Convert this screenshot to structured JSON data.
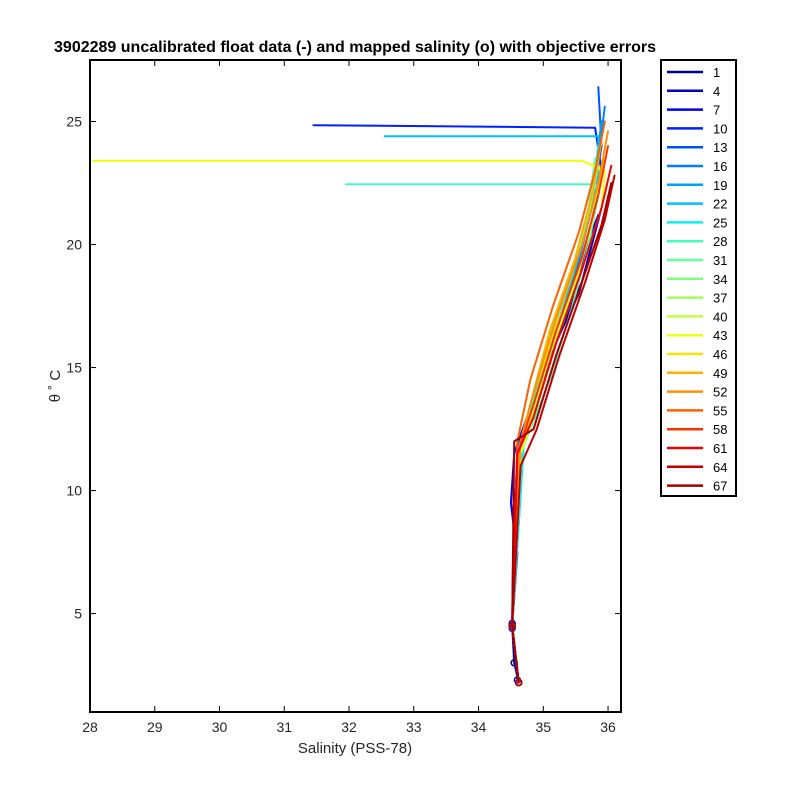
{
  "chart_data": {
    "type": "line",
    "title": "3902289 uncalibrated float data (-) and mapped salinity (o) with objective errors",
    "xlabel": "Salinity (PSS-78)",
    "ylabel": "θ ˚ C",
    "xlim": [
      28,
      36.2
    ],
    "ylim": [
      1,
      27.5
    ],
    "xticks": [
      28,
      29,
      30,
      31,
      32,
      33,
      34,
      35,
      36
    ],
    "yticks": [
      5,
      10,
      15,
      20,
      25
    ],
    "grid": false,
    "legend_placement": "outside-right",
    "legend": [
      "1",
      "4",
      "7",
      "10",
      "13",
      "16",
      "19",
      "22",
      "25",
      "28",
      "31",
      "34",
      "37",
      "40",
      "43",
      "46",
      "49",
      "52",
      "55",
      "58",
      "61",
      "64",
      "67"
    ],
    "colors": [
      "#000090",
      "#0000c0",
      "#0000f0",
      "#0020ff",
      "#0050ff",
      "#0080ff",
      "#00a0ff",
      "#00c0ff",
      "#10f0ef",
      "#40ffc0",
      "#60ffa0",
      "#80ff80",
      "#a0ff60",
      "#c0ff40",
      "#efff10",
      "#ffe000",
      "#ffb000",
      "#ff9000",
      "#ff6000",
      "#ff3000",
      "#f00000",
      "#c00000",
      "#a00000"
    ],
    "series": [
      {
        "name": "1",
        "x": [
          35.85,
          35.75,
          35.55,
          35.1,
          34.8,
          34.6,
          34.55,
          34.6,
          34.52,
          34.55,
          34.62
        ],
        "y": [
          21.0,
          20.0,
          18.0,
          15.5,
          13.0,
          11.8,
          8.0,
          7.5,
          4.5,
          3.0,
          2.2
        ]
      },
      {
        "name": "4",
        "x": [
          35.9,
          35.8,
          35.6,
          35.2,
          34.85,
          34.62,
          34.55,
          34.53,
          34.52,
          34.6
        ],
        "y": [
          21.5,
          20.5,
          18.5,
          16.0,
          13.2,
          12.0,
          9.0,
          6.8,
          4.6,
          2.3
        ]
      },
      {
        "name": "7",
        "x": [
          35.85,
          35.7,
          35.5,
          35.1,
          34.75,
          34.55,
          34.5,
          34.58,
          34.52,
          34.62
        ],
        "y": [
          21.2,
          20.2,
          18.0,
          15.8,
          13.0,
          11.5,
          9.5,
          7.7,
          4.4,
          2.2
        ]
      },
      {
        "name": "10",
        "x": [
          31.45,
          35.8,
          35.9,
          35.75,
          35.5,
          35.1,
          34.8,
          34.6,
          34.52,
          34.62
        ],
        "y": [
          24.85,
          24.75,
          23.0,
          21.0,
          18.5,
          15.5,
          13.0,
          11.8,
          4.5,
          2.2
        ]
      },
      {
        "name": "13",
        "x": [
          35.85,
          35.9,
          35.75,
          35.45,
          35.05,
          34.7,
          34.52,
          34.62
        ],
        "y": [
          26.4,
          24.0,
          21.5,
          18.5,
          15.5,
          12.5,
          4.5,
          2.2
        ]
      },
      {
        "name": "16",
        "x": [
          35.95,
          35.85,
          35.7,
          35.45,
          35.0,
          34.7,
          34.52,
          34.62
        ],
        "y": [
          25.6,
          23.5,
          21.0,
          18.2,
          15.0,
          12.3,
          4.5,
          2.2
        ]
      },
      {
        "name": "19",
        "x": [
          35.9,
          35.8,
          35.65,
          35.4,
          35.0,
          34.7,
          34.52,
          34.62
        ],
        "y": [
          25.0,
          23.0,
          20.5,
          18.0,
          15.0,
          12.0,
          4.5,
          2.2
        ]
      },
      {
        "name": "22",
        "x": [
          32.55,
          35.85,
          35.85,
          35.65,
          35.35,
          34.95,
          34.7,
          34.52,
          34.62
        ],
        "y": [
          24.4,
          24.4,
          22.8,
          20.5,
          17.8,
          14.8,
          12.0,
          4.5,
          2.2
        ]
      },
      {
        "name": "25",
        "x": [
          35.85,
          35.75,
          35.5,
          35.2,
          34.9,
          34.7,
          34.52,
          34.62
        ],
        "y": [
          24.0,
          22.0,
          19.5,
          17.0,
          14.5,
          12.0,
          4.5,
          2.2
        ]
      },
      {
        "name": "28",
        "x": [
          31.95,
          35.8,
          35.85,
          35.7,
          35.45,
          35.1,
          34.8,
          34.65,
          34.52,
          34.62
        ],
        "y": [
          22.45,
          22.45,
          22.0,
          20.0,
          17.5,
          14.5,
          12.5,
          11.5,
          4.5,
          2.2
        ]
      },
      {
        "name": "31",
        "x": [
          35.8,
          35.7,
          35.45,
          35.05,
          34.75,
          34.6,
          34.52,
          34.62
        ],
        "y": [
          23.5,
          21.5,
          19.0,
          16.0,
          13.0,
          11.5,
          4.5,
          2.2
        ]
      },
      {
        "name": "34",
        "x": [
          35.85,
          35.7,
          35.45,
          35.05,
          34.75,
          34.6,
          34.52,
          34.62
        ],
        "y": [
          23.2,
          21.2,
          18.8,
          15.8,
          13.0,
          11.5,
          4.5,
          2.2
        ]
      },
      {
        "name": "37",
        "x": [
          35.9,
          35.75,
          35.5,
          35.1,
          34.8,
          34.62,
          34.52,
          34.62
        ],
        "y": [
          23.0,
          21.0,
          18.5,
          15.8,
          13.0,
          11.5,
          4.5,
          2.2
        ]
      },
      {
        "name": "40",
        "x": [
          35.9,
          35.75,
          35.5,
          35.1,
          34.8,
          34.62,
          34.52,
          34.62
        ],
        "y": [
          22.8,
          20.8,
          18.5,
          15.5,
          12.8,
          11.3,
          4.5,
          2.2
        ]
      },
      {
        "name": "43",
        "x": [
          28.05,
          35.6,
          35.95,
          35.9,
          35.6,
          35.2,
          34.85,
          34.65,
          34.52,
          34.62
        ],
        "y": [
          23.4,
          23.4,
          23.0,
          21.5,
          19.0,
          16.0,
          13.0,
          11.5,
          4.5,
          2.2
        ]
      },
      {
        "name": "46",
        "x": [
          35.95,
          35.8,
          35.55,
          35.1,
          34.8,
          34.62,
          34.52,
          34.62
        ],
        "y": [
          23.5,
          21.5,
          19.0,
          16.0,
          13.0,
          11.5,
          4.5,
          2.2
        ]
      },
      {
        "name": "49",
        "x": [
          35.9,
          35.75,
          35.5,
          35.1,
          34.8,
          34.62,
          34.52,
          34.62
        ],
        "y": [
          24.2,
          22.0,
          19.5,
          16.5,
          13.5,
          11.5,
          4.5,
          2.2
        ]
      },
      {
        "name": "52",
        "x": [
          36.0,
          35.85,
          35.6,
          35.2,
          34.85,
          34.65,
          34.52,
          34.62
        ],
        "y": [
          24.6,
          22.5,
          20.0,
          17.0,
          14.0,
          12.0,
          4.5,
          2.2
        ]
      },
      {
        "name": "55",
        "x": [
          35.95,
          35.8,
          35.55,
          35.15,
          34.8,
          34.6,
          34.52,
          34.62
        ],
        "y": [
          25.0,
          23.0,
          20.5,
          17.5,
          14.5,
          12.0,
          4.5,
          2.2
        ]
      },
      {
        "name": "58",
        "x": [
          36.0,
          35.85,
          35.6,
          35.2,
          34.85,
          34.6,
          34.52,
          34.62
        ],
        "y": [
          24.0,
          22.0,
          19.5,
          16.5,
          13.5,
          11.5,
          4.5,
          2.2
        ]
      },
      {
        "name": "61",
        "x": [
          36.05,
          35.9,
          35.6,
          35.2,
          34.85,
          34.6,
          34.52,
          34.62
        ],
        "y": [
          23.2,
          21.5,
          19.0,
          16.0,
          13.0,
          11.5,
          4.5,
          2.2
        ]
      },
      {
        "name": "64",
        "x": [
          36.1,
          35.95,
          35.65,
          35.25,
          34.9,
          34.65,
          34.52,
          34.62
        ],
        "y": [
          22.8,
          21.0,
          18.5,
          15.5,
          12.5,
          11.0,
          4.5,
          2.2
        ]
      },
      {
        "name": "67",
        "x": [
          36.05,
          35.9,
          35.6,
          35.2,
          34.85,
          34.55,
          34.52,
          34.62
        ],
        "y": [
          22.5,
          20.8,
          18.5,
          15.5,
          12.5,
          12.0,
          4.5,
          2.2
        ]
      }
    ]
  }
}
